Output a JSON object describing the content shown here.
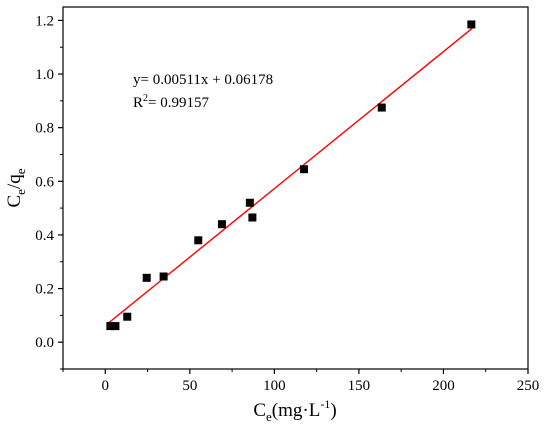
{
  "chart_data": {
    "type": "scatter",
    "title": "",
    "xlabel": {
      "main": "C",
      "sub": "e",
      "rest": "(mg·L",
      "sup": "-1",
      "end": ")"
    },
    "ylabel": {
      "main1": "C",
      "sub1": "e",
      "mid": "/q",
      "sub2": "e"
    },
    "xlim": [
      -25,
      250
    ],
    "ylim": [
      -0.1,
      1.25
    ],
    "xticks": [
      "0",
      "50",
      "100",
      "150",
      "200",
      "250"
    ],
    "xtick_values": [
      0,
      50,
      100,
      150,
      200,
      250
    ],
    "yticks": [
      "0.0",
      "0.2",
      "0.4",
      "0.6",
      "0.8",
      "1.0",
      "1.2"
    ],
    "ytick_values": [
      0,
      0.2,
      0.4,
      0.6,
      0.8,
      1.0,
      1.2
    ],
    "grid": false,
    "series": [
      {
        "marker": "square",
        "color": "#000000",
        "x": [
          3.0,
          6.0,
          13.0,
          24.5,
          34.5,
          55.0,
          69.0,
          85.5,
          87.0,
          117.5,
          163.5,
          216.5
        ],
        "y": [
          0.06,
          0.06,
          0.095,
          0.24,
          0.245,
          0.38,
          0.44,
          0.52,
          0.465,
          0.645,
          0.875,
          1.185
        ]
      }
    ],
    "fit_line": {
      "color": "#ff0000",
      "slope": 0.00511,
      "intercept": 0.06178,
      "x_range": [
        2,
        217
      ]
    },
    "annotation": {
      "equation": "y= 0.00511x + 0.06178",
      "r2_prefix": "R",
      "r2_sup": "2",
      "r2_value": "= 0.99157"
    }
  }
}
